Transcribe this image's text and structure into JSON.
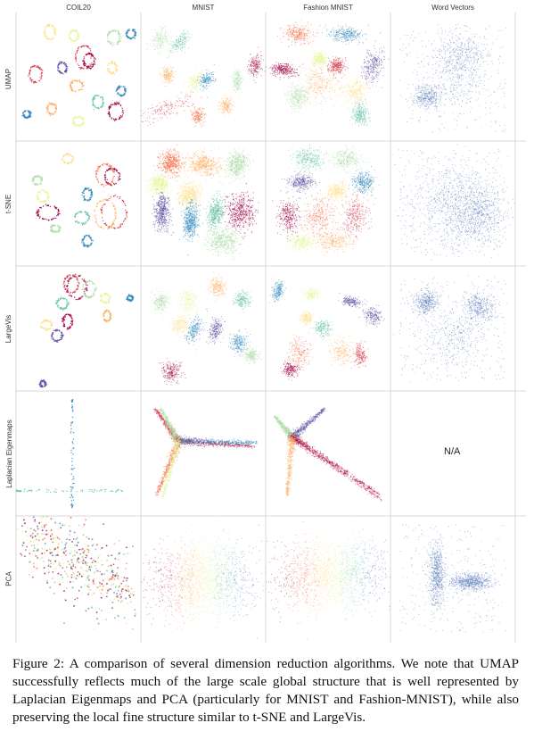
{
  "columns": [
    "COIL20",
    "MNIST",
    "Fashion MNIST",
    "Word Vectors"
  ],
  "rows": [
    "UMAP",
    "t-SNE",
    "LargeVis",
    "Laplacian Eigenmaps",
    "PCA"
  ],
  "missing_panel_text": "N/A",
  "caption": "Figure 2: A comparison of several dimension reduction algorithms. We note that UMAP successfully reflects much of the large scale global structure that is well represented by Laplacian Eigenmaps and PCA (particularly for MNIST and Fashion-MNIST), while also preserving the local fine structure similar to t-SNE and LargeVis.",
  "colors": {
    "palette": [
      "#9e0142",
      "#d53e4f",
      "#f46d43",
      "#fdae61",
      "#fee08b",
      "#e6f598",
      "#abdda4",
      "#66c2a5",
      "#3288bd",
      "#5e4fa2"
    ],
    "word_vectors": "#4a6fb5",
    "grid": "#d9d9d9"
  }
}
